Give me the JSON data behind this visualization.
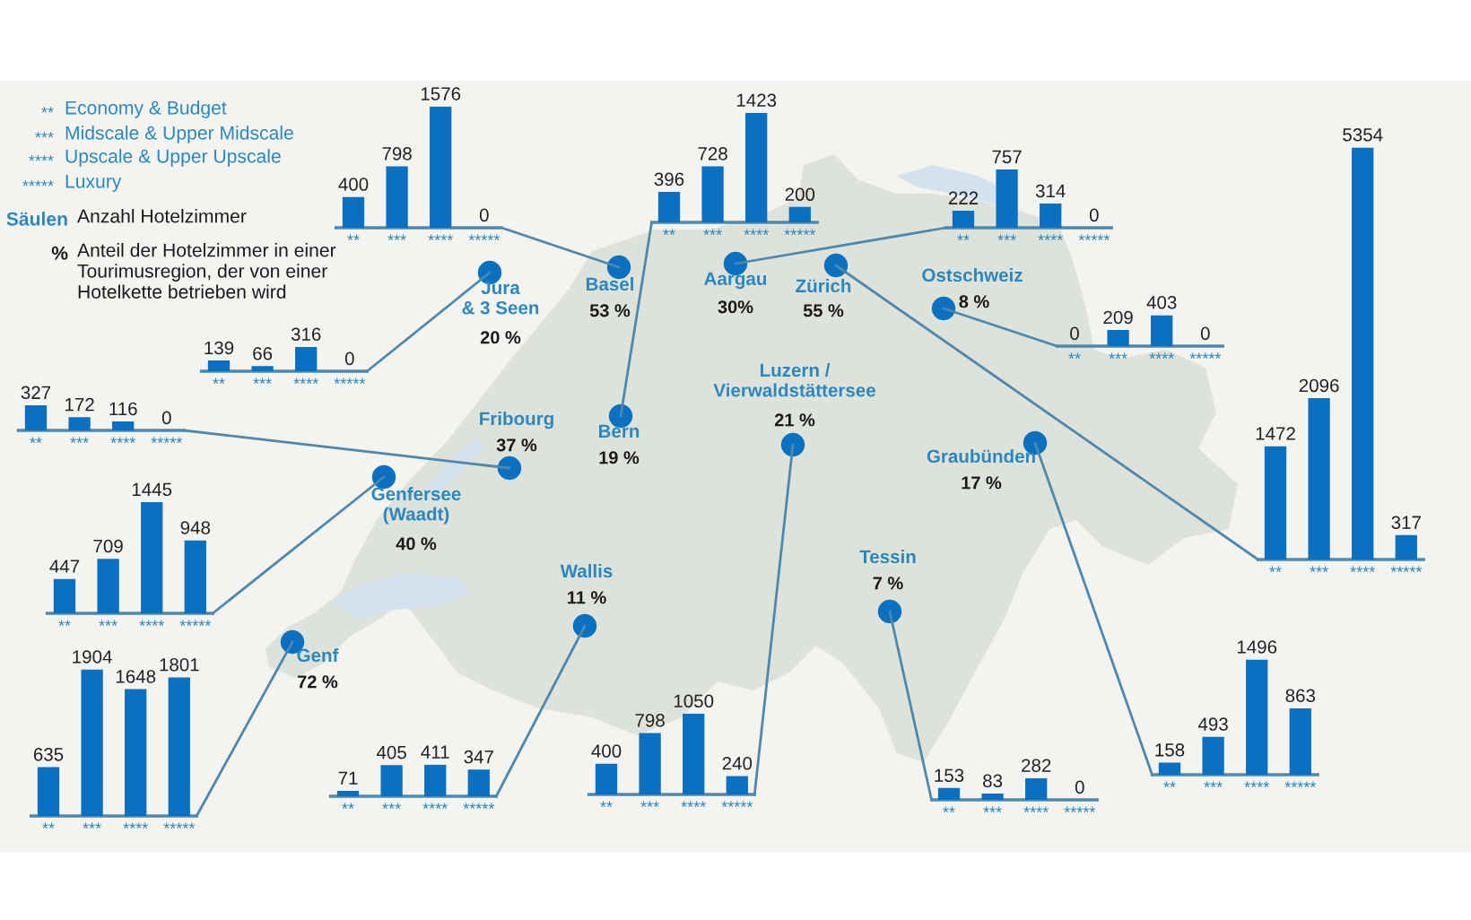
{
  "chart_data": [
    {
      "type": "other",
      "annotations": [
        "**",
        "Economy & Budget",
        "***",
        "Midscale & Upper Midscale",
        "****",
        "Upscale & Upper Upscale",
        "*****",
        "Luxury",
        "Säulen",
        "Anzahl Hotelzimmer",
        "%",
        "Anteil der Hotelzimmer in einer\nTourimusregion, der von einer\nHotelkette betrieben wird"
      ]
    },
    {
      "type": "other",
      "annotations": [
        "Basel",
        "53 %",
        "Bern",
        "19 %",
        "Aargau",
        "30%",
        "Ostschweiz",
        "8 %",
        "Jura\n& 3 Seen",
        "20 %",
        "Fribourg",
        "37 %",
        "Zürich",
        "55 %",
        "Genfersee\n(Waadt)",
        "40 %",
        "Graubünden",
        "17 %",
        "Luzern /\nVierwaldstättersee",
        "21 %",
        "Wallis",
        "11 %",
        "Tessin",
        "7 %",
        "Genf",
        "72 %"
      ]
    },
    {
      "type": "bar",
      "categories": [
        "**",
        "***",
        "****",
        "*****"
      ],
      "values": [
        400,
        798,
        1576,
        0
      ],
      "color": "#0b70c0",
      "data_labels": true
    },
    {
      "type": "bar",
      "categories": [
        "**",
        "***",
        "****",
        "*****"
      ],
      "values": [
        396,
        728,
        1423,
        200
      ],
      "color": "#0b70c0",
      "data_labels": true
    },
    {
      "type": "bar",
      "categories": [
        "**",
        "***",
        "****",
        "*****"
      ],
      "values": [
        222,
        757,
        314,
        0
      ],
      "color": "#0b70c0",
      "data_labels": true
    },
    {
      "type": "bar",
      "categories": [
        "**",
        "***",
        "****",
        "*****"
      ],
      "values": [
        0,
        209,
        403,
        0
      ],
      "color": "#0b70c0",
      "data_labels": true
    },
    {
      "type": "bar",
      "categories": [
        "**",
        "***",
        "****",
        "*****"
      ],
      "values": [
        139,
        66,
        316,
        0
      ],
      "color": "#0b70c0",
      "data_labels": true
    },
    {
      "type": "bar",
      "categories": [
        "**",
        "***",
        "****",
        "*****"
      ],
      "values": [
        327,
        172,
        116,
        0
      ],
      "color": "#0b70c0",
      "data_labels": true
    },
    {
      "type": "bar",
      "categories": [
        "**",
        "***",
        "****",
        "*****"
      ],
      "values": [
        1472,
        2096,
        5354,
        317
      ],
      "color": "#0b70c0",
      "data_labels": true
    },
    {
      "type": "bar",
      "categories": [
        "**",
        "***",
        "****",
        "*****"
      ],
      "values": [
        447,
        709,
        1445,
        948
      ],
      "color": "#0b70c0",
      "data_labels": true
    },
    {
      "type": "bar",
      "categories": [
        "**",
        "***",
        "****",
        "*****"
      ],
      "values": [
        158,
        493,
        1496,
        863
      ],
      "color": "#0b70c0",
      "data_labels": true
    },
    {
      "type": "bar",
      "categories": [
        "**",
        "***",
        "****",
        "*****"
      ],
      "values": [
        400,
        798,
        1050,
        240
      ],
      "color": "#0b70c0",
      "data_labels": true
    },
    {
      "type": "bar",
      "categories": [
        "**",
        "***",
        "****",
        "*****"
      ],
      "values": [
        71,
        405,
        411,
        347
      ],
      "color": "#0b70c0",
      "data_labels": true
    },
    {
      "type": "bar",
      "categories": [
        "**",
        "***",
        "****",
        "*****"
      ],
      "values": [
        153,
        83,
        282,
        0
      ],
      "color": "#0b70c0",
      "data_labels": true
    },
    {
      "type": "bar",
      "categories": [
        "**",
        "***",
        "****",
        "*****"
      ],
      "values": [
        635,
        1904,
        1648,
        1801
      ],
      "color": "#0b70c0",
      "data_labels": true
    }
  ]
}
